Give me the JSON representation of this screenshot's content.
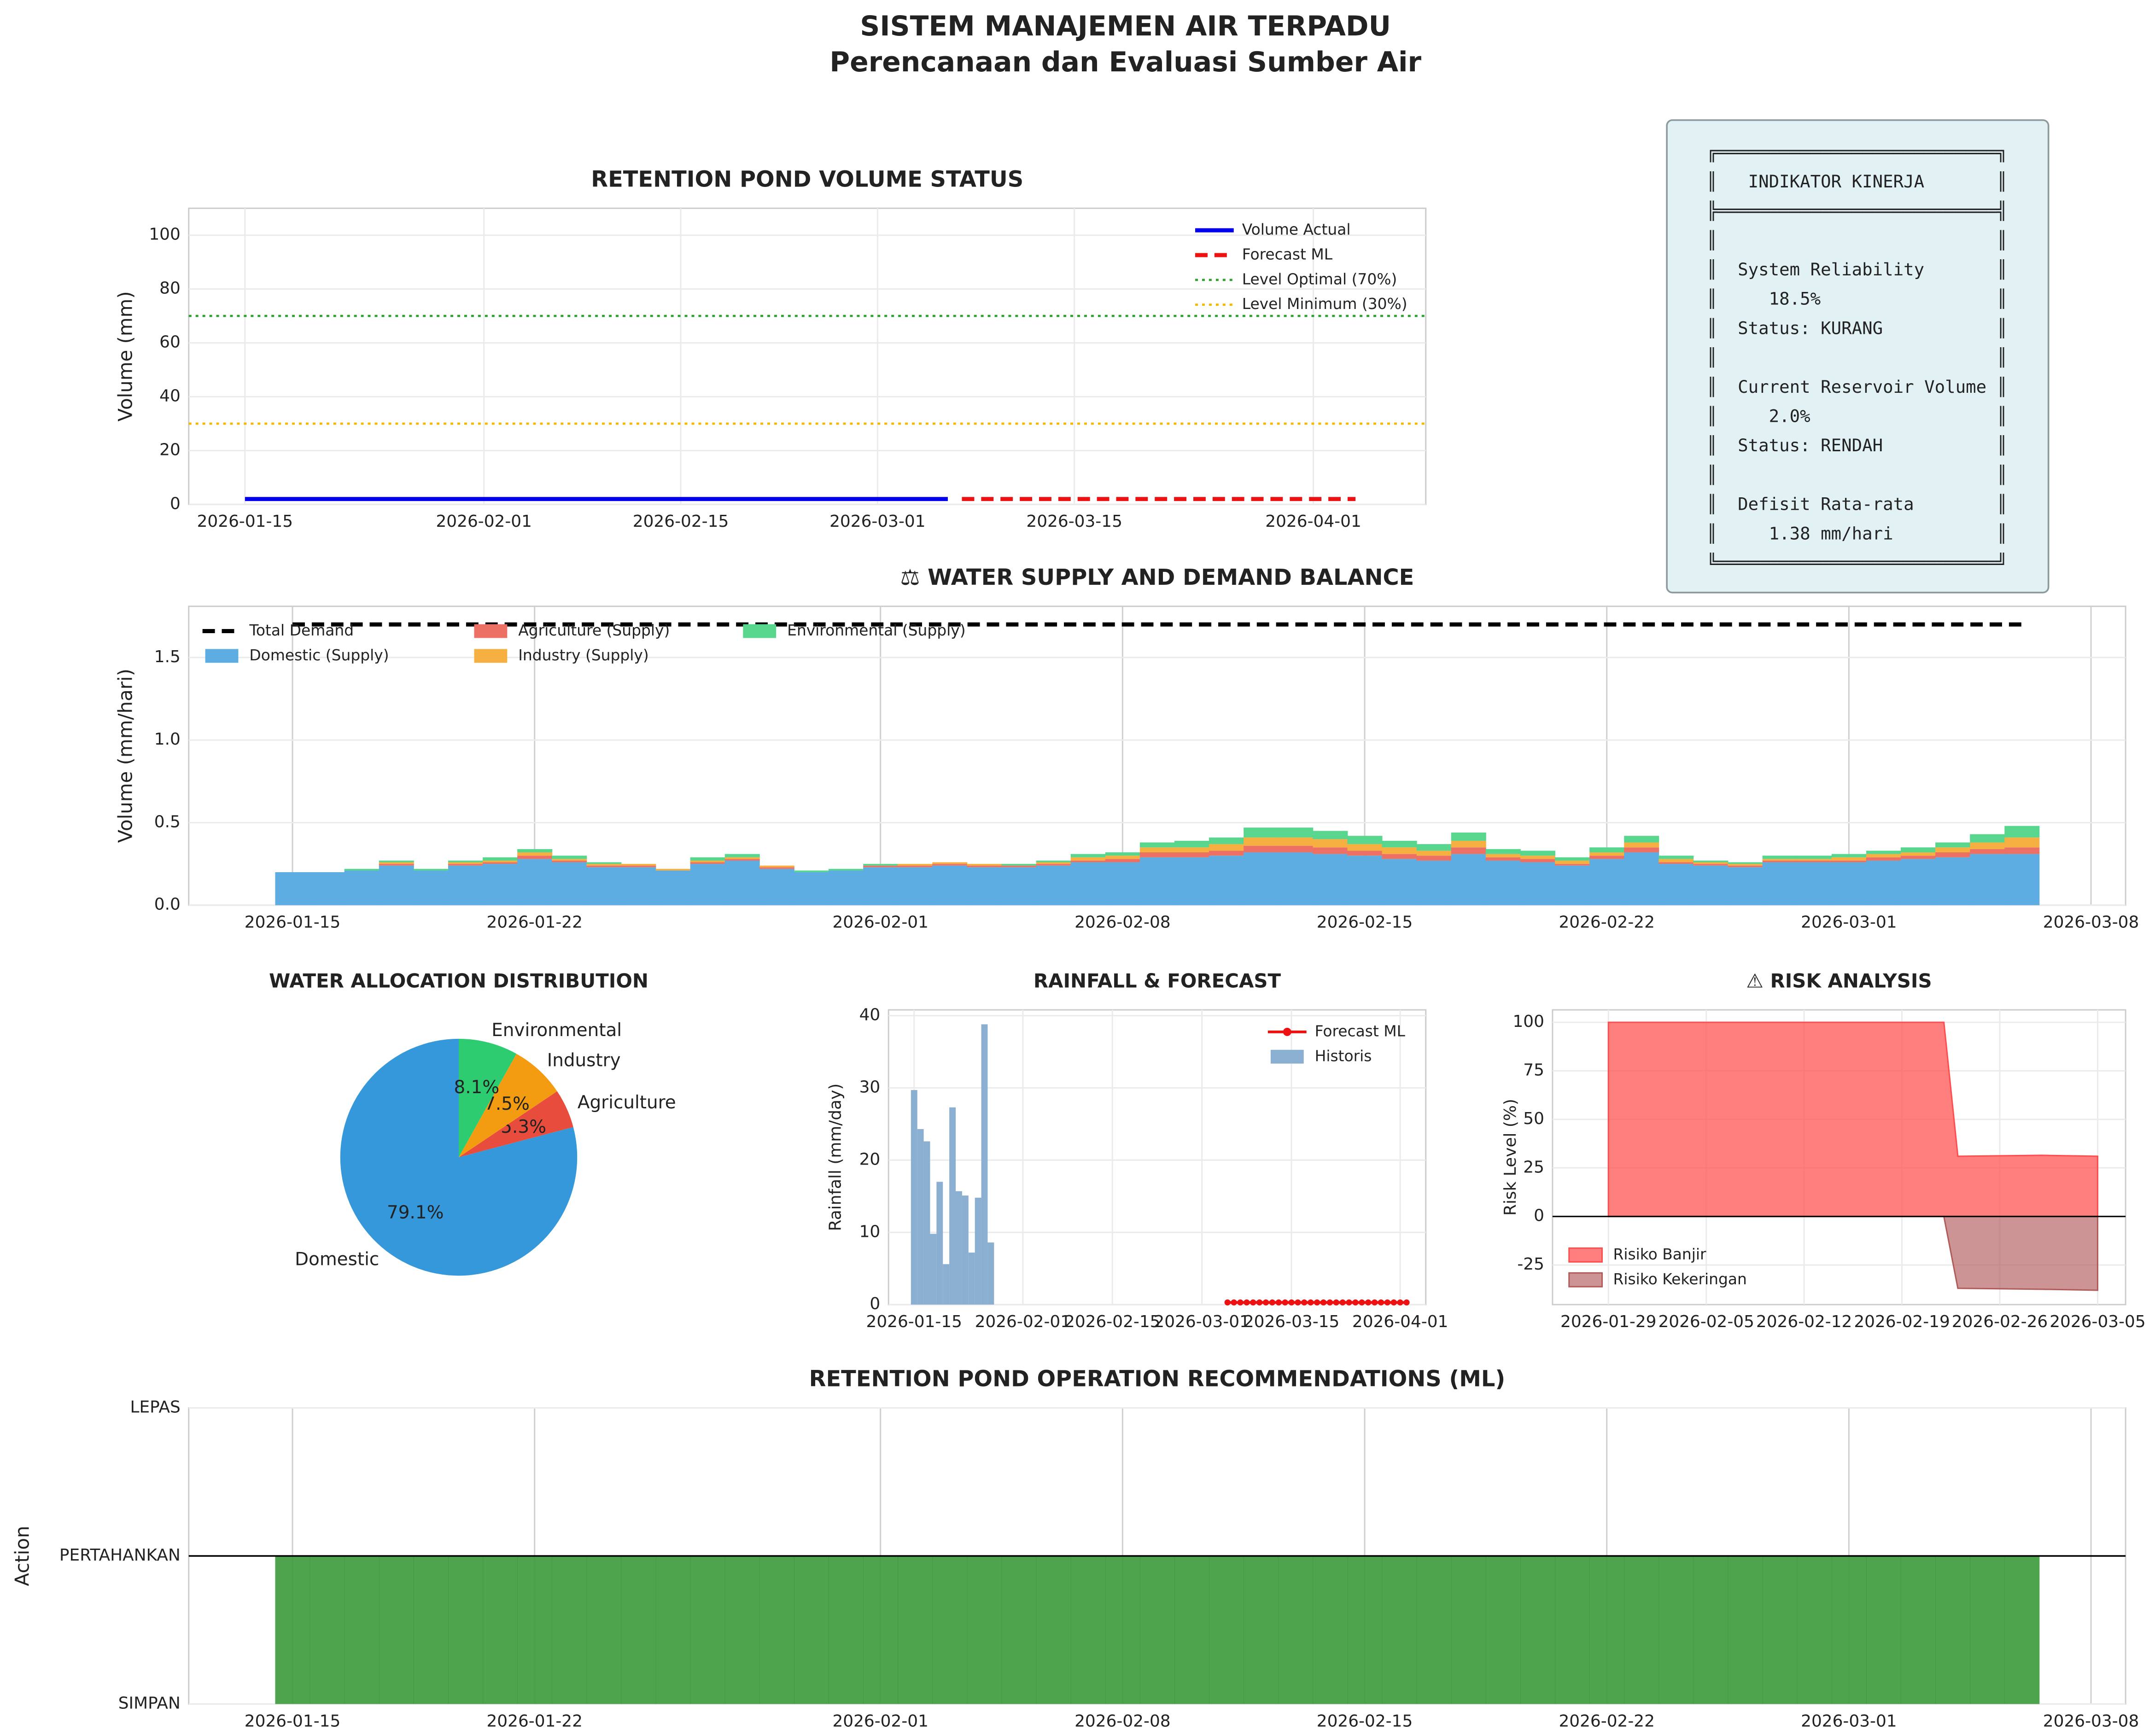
{
  "title": "SISTEM MANAJEMEN AIR TERPADU",
  "subtitle": "Perencanaan dan Evaluasi Sumber Air",
  "kpi_panel": {
    "lines": [
      "╔═══════════════════════════╗",
      "║   INDIKATOR KINERJA       ║",
      "╠═══════════════════════════╣",
      "║                           ║",
      "║  System Reliability       ║",
      "║     18.5%                 ║",
      "║  Status: KURANG           ║",
      "║                           ║",
      "║  Current Reservoir Volume ║",
      "║     2.0%                  ║",
      "║  Status: RENDAH           ║",
      "║                           ║",
      "║  Defisit Rata-rata        ║",
      "║     1.38 mm/hari          ║",
      "╚═══════════════════════════╝"
    ]
  },
  "chart_data": [
    {
      "type": "line",
      "title": "RETENTION POND VOLUME STATUS",
      "y_label": "Volume (mm)",
      "xlim": [
        "2026-01-11",
        "2026-04-09"
      ],
      "xticks": [
        "2026-01-15",
        "2026-02-01",
        "2026-02-15",
        "2026-03-01",
        "2026-03-15",
        "2026-04-01"
      ],
      "ylim": [
        0,
        110
      ],
      "yticks": [
        0,
        20,
        40,
        60,
        80,
        100
      ],
      "grid": true,
      "legend": "upper right",
      "series": [
        {
          "name": "Volume Actual",
          "color": "#0000ee",
          "style": "solid",
          "x": [
            "2026-01-15",
            "2026-03-06"
          ],
          "values": [
            2,
            2
          ]
        },
        {
          "name": "Forecast ML",
          "color": "#ee1111",
          "style": "dashed",
          "x": [
            "2026-03-07",
            "2026-04-04"
          ],
          "values": [
            2,
            2
          ]
        }
      ],
      "hlines": [
        {
          "name": "Level Optimal (70%)",
          "value": 70,
          "color": "#2ca02c",
          "style": "dotted"
        },
        {
          "name": "Level Minimum (30%)",
          "value": 30,
          "color": "#f5b800",
          "style": "dotted"
        }
      ]
    },
    {
      "type": "stacked_bar",
      "title": "⚖ WATER SUPPLY AND DEMAND BALANCE",
      "y_label": "Volume (mm/hari)",
      "xlim": [
        "2026-01-12",
        "2026-03-09"
      ],
      "xticks": [
        "2026-01-15",
        "2026-01-22",
        "2026-02-01",
        "2026-02-08",
        "2026-02-15",
        "2026-02-22",
        "2026-03-01",
        "2026-03-08"
      ],
      "ylim": [
        0,
        1.81
      ],
      "yticks": [
        {
          "value": 0,
          "label": "0.0"
        },
        {
          "value": 0.5,
          "label": "0.5"
        },
        {
          "value": 1,
          "label": "1.0"
        },
        {
          "value": 1.5,
          "label": "1.5"
        }
      ],
      "grid": true,
      "legend": "upper left",
      "categories": [
        "2026-01-15",
        "2026-01-16",
        "2026-01-17",
        "2026-01-18",
        "2026-01-19",
        "2026-01-20",
        "2026-01-21",
        "2026-01-22",
        "2026-01-23",
        "2026-01-24",
        "2026-01-25",
        "2026-01-26",
        "2026-01-27",
        "2026-01-28",
        "2026-01-29",
        "2026-01-30",
        "2026-01-31",
        "2026-02-01",
        "2026-02-02",
        "2026-02-03",
        "2026-02-04",
        "2026-02-05",
        "2026-02-06",
        "2026-02-07",
        "2026-02-08",
        "2026-02-09",
        "2026-02-10",
        "2026-02-11",
        "2026-02-12",
        "2026-02-13",
        "2026-02-14",
        "2026-02-15",
        "2026-02-16",
        "2026-02-17",
        "2026-02-18",
        "2026-02-19",
        "2026-02-20",
        "2026-02-21",
        "2026-02-22",
        "2026-02-23",
        "2026-02-24",
        "2026-02-25",
        "2026-02-26",
        "2026-02-27",
        "2026-02-28",
        "2026-03-01",
        "2026-03-02",
        "2026-03-03",
        "2026-03-04",
        "2026-03-05",
        "2026-03-06"
      ],
      "series": [
        {
          "name": "Domestic (Supply)",
          "color": "#5dade2",
          "values": [
            0.2,
            0.2,
            0.21,
            0.24,
            0.21,
            0.24,
            0.25,
            0.28,
            0.26,
            0.23,
            0.23,
            0.21,
            0.25,
            0.27,
            0.22,
            0.2,
            0.21,
            0.23,
            0.23,
            0.24,
            0.23,
            0.23,
            0.24,
            0.26,
            0.26,
            0.29,
            0.29,
            0.3,
            0.32,
            0.32,
            0.31,
            0.3,
            0.28,
            0.27,
            0.31,
            0.27,
            0.26,
            0.24,
            0.28,
            0.32,
            0.25,
            0.24,
            0.23,
            0.26,
            0.26,
            0.26,
            0.27,
            0.28,
            0.29,
            0.31,
            0.31
          ]
        },
        {
          "name": "Agriculture (Supply)",
          "color": "#ec7063",
          "values": [
            0,
            0,
            0,
            0.01,
            0,
            0.01,
            0.01,
            0.02,
            0.01,
            0.01,
            0.01,
            0,
            0.01,
            0.01,
            0.01,
            0,
            0,
            0.01,
            0.01,
            0.01,
            0.01,
            0.01,
            0.01,
            0.01,
            0.02,
            0.03,
            0.03,
            0.03,
            0.04,
            0.04,
            0.04,
            0.03,
            0.03,
            0.03,
            0.04,
            0.02,
            0.02,
            0.01,
            0.02,
            0.03,
            0.01,
            0.01,
            0.01,
            0.01,
            0.01,
            0.01,
            0.02,
            0.02,
            0.03,
            0.03,
            0.04
          ]
        },
        {
          "name": "Industry (Supply)",
          "color": "#f5b041",
          "values": [
            0,
            0,
            0,
            0.01,
            0,
            0.01,
            0.01,
            0.02,
            0.01,
            0.01,
            0.01,
            0.01,
            0.01,
            0.01,
            0.01,
            0,
            0,
            0,
            0.01,
            0.01,
            0.01,
            0,
            0.01,
            0.02,
            0.02,
            0.03,
            0.03,
            0.04,
            0.05,
            0.05,
            0.05,
            0.04,
            0.04,
            0.03,
            0.04,
            0.02,
            0.02,
            0.02,
            0.02,
            0.03,
            0.02,
            0.01,
            0.01,
            0.01,
            0.01,
            0.02,
            0.02,
            0.02,
            0.03,
            0.04,
            0.06
          ]
        },
        {
          "name": "Environmental (Supply)",
          "color": "#58d68d",
          "values": [
            0,
            0,
            0.01,
            0.01,
            0.01,
            0.01,
            0.02,
            0.02,
            0.02,
            0.01,
            0,
            0,
            0.02,
            0.02,
            0,
            0.01,
            0.01,
            0.01,
            0,
            0,
            0,
            0.01,
            0.01,
            0.02,
            0.02,
            0.03,
            0.04,
            0.04,
            0.06,
            0.06,
            0.05,
            0.05,
            0.04,
            0.04,
            0.05,
            0.03,
            0.03,
            0.02,
            0.03,
            0.04,
            0.02,
            0.01,
            0.01,
            0.02,
            0.02,
            0.02,
            0.02,
            0.03,
            0.03,
            0.05,
            0.07
          ]
        }
      ],
      "lines": [
        {
          "name": "Total Demand",
          "color": "#000000",
          "style": "dashed",
          "x": [
            "2026-01-15",
            "2026-03-06"
          ],
          "values": [
            1.7,
            1.7
          ]
        }
      ]
    },
    {
      "type": "pie",
      "title": "WATER ALLOCATION DISTRIBUTION",
      "categories": [
        "Domestic",
        "Agriculture",
        "Industry",
        "Environmental"
      ],
      "values": [
        79.1,
        5.3,
        7.5,
        8.1
      ],
      "value_labels": [
        "79.1%",
        "5.3%",
        "7.5%",
        "8.1%"
      ],
      "colors": [
        "#3498db",
        "#e74c3c",
        "#f39c12",
        "#2ecc71"
      ],
      "start_angle": 90
    },
    {
      "type": "bar_line",
      "title": "RAINFALL & FORECAST",
      "y_label": "Rainfall (mm/day)",
      "xlim": [
        "2026-01-11",
        "2026-04-05"
      ],
      "xticks": [
        "2026-01-15",
        "2026-02-01",
        "2026-02-15",
        "2026-03-01",
        "2026-03-15",
        "2026-04-01"
      ],
      "ylim": [
        0,
        40.8
      ],
      "yticks": [
        0,
        10,
        20,
        30,
        40
      ],
      "grid": true,
      "legend": "upper right",
      "series": [
        {
          "name": "Forecast ML",
          "kind": "line",
          "color": "#ee1111",
          "x": [
            "2026-03-05",
            "2026-03-06",
            "2026-03-07",
            "2026-03-08",
            "2026-03-09",
            "2026-03-10",
            "2026-03-11",
            "2026-03-12",
            "2026-03-13",
            "2026-03-14",
            "2026-03-15",
            "2026-03-16",
            "2026-03-17",
            "2026-03-18",
            "2026-03-19",
            "2026-03-20",
            "2026-03-21",
            "2026-03-22",
            "2026-03-23",
            "2026-03-24",
            "2026-03-25",
            "2026-03-26",
            "2026-03-27",
            "2026-03-28",
            "2026-03-29",
            "2026-03-30",
            "2026-03-31",
            "2026-04-01",
            "2026-04-02"
          ],
          "values": [
            0.3,
            0.3,
            0.3,
            0.3,
            0.3,
            0.3,
            0.3,
            0.3,
            0.3,
            0.3,
            0.3,
            0.3,
            0.3,
            0.3,
            0.3,
            0.3,
            0.3,
            0.3,
            0.3,
            0.3,
            0.3,
            0.3,
            0.3,
            0.3,
            0.3,
            0.3,
            0.3,
            0.3,
            0.3
          ]
        },
        {
          "name": "Historis",
          "kind": "bar",
          "color": "#8aafd0",
          "x": [
            "2026-01-15",
            "2026-01-16",
            "2026-01-17",
            "2026-01-18",
            "2026-01-19",
            "2026-01-20",
            "2026-01-21",
            "2026-01-22",
            "2026-01-23",
            "2026-01-24",
            "2026-01-25",
            "2026-01-26",
            "2026-01-27"
          ],
          "values": [
            29.7,
            24.3,
            22.6,
            9.8,
            17,
            5.6,
            27.3,
            15.7,
            15.1,
            7.2,
            14.8,
            38.8,
            8.6
          ]
        }
      ]
    },
    {
      "type": "area",
      "title": "⚠ RISK ANALYSIS",
      "y_label": "Risk Level (%)",
      "xlim": [
        "2026-01-25",
        "2026-03-07"
      ],
      "xticks": [
        "2026-01-29",
        "2026-02-05",
        "2026-02-12",
        "2026-02-19",
        "2026-02-26",
        "2026-03-05"
      ],
      "ylim": [
        -45.4,
        106.4
      ],
      "yticks": [
        -25,
        0,
        25,
        50,
        75,
        100
      ],
      "grid": true,
      "legend": "lower left",
      "series": [
        {
          "name": "Risiko Banjir",
          "color": "#ff4d4d",
          "x": [
            "2026-01-29",
            "2026-02-22",
            "2026-02-23",
            "2026-03-01",
            "2026-03-05"
          ],
          "values": [
            100,
            100,
            31,
            31.5,
            31
          ]
        },
        {
          "name": "Risiko Kekeringan",
          "color": "#b05a5a",
          "x": [
            "2026-01-29",
            "2026-02-22",
            "2026-02-23",
            "2026-03-01",
            "2026-03-05"
          ],
          "values": [
            0,
            0,
            -37,
            -37.5,
            -38
          ]
        }
      ]
    },
    {
      "type": "step",
      "title": "RETENTION POND OPERATION RECOMMENDATIONS (ML)",
      "y_label": "Action",
      "xlim": [
        "2026-01-12",
        "2026-03-09"
      ],
      "xticks": [
        "2026-01-15",
        "2026-01-22",
        "2026-02-01",
        "2026-02-08",
        "2026-02-15",
        "2026-02-22",
        "2026-03-01",
        "2026-03-08"
      ],
      "ylim": [
        -1,
        1
      ],
      "yticks": [
        {
          "value": -1,
          "label": "SIMPAN"
        },
        {
          "value": 0,
          "label": "PERTAHANKAN"
        },
        {
          "value": 1,
          "label": "LEPAS"
        }
      ],
      "grid": true,
      "color": "#3a9a3a",
      "categories": [
        "2026-01-15",
        "2026-01-16",
        "2026-01-17",
        "2026-01-18",
        "2026-01-19",
        "2026-01-20",
        "2026-01-21",
        "2026-01-22",
        "2026-01-23",
        "2026-01-24",
        "2026-01-25",
        "2026-01-26",
        "2026-01-27",
        "2026-01-28",
        "2026-01-29",
        "2026-01-30",
        "2026-01-31",
        "2026-02-01",
        "2026-02-02",
        "2026-02-03",
        "2026-02-04",
        "2026-02-05",
        "2026-02-06",
        "2026-02-07",
        "2026-02-08",
        "2026-02-09",
        "2026-02-10",
        "2026-02-11",
        "2026-02-12",
        "2026-02-13",
        "2026-02-14",
        "2026-02-15",
        "2026-02-16",
        "2026-02-17",
        "2026-02-18",
        "2026-02-19",
        "2026-02-20",
        "2026-02-21",
        "2026-02-22",
        "2026-02-23",
        "2026-02-24",
        "2026-02-25",
        "2026-02-26",
        "2026-02-27",
        "2026-02-28",
        "2026-03-01",
        "2026-03-02",
        "2026-03-03",
        "2026-03-04",
        "2026-03-05",
        "2026-03-06"
      ],
      "values": [
        0,
        0,
        0,
        0,
        0,
        0,
        0,
        0,
        0,
        0,
        0,
        0,
        0,
        0,
        0,
        0,
        0,
        0,
        0,
        0,
        0,
        0,
        0,
        0,
        0,
        0,
        0,
        0,
        0,
        0,
        0,
        0,
        0,
        0,
        0,
        0,
        0,
        0,
        0,
        0,
        0,
        0,
        0,
        0,
        0,
        0,
        0,
        0,
        0,
        0,
        0
      ]
    }
  ]
}
